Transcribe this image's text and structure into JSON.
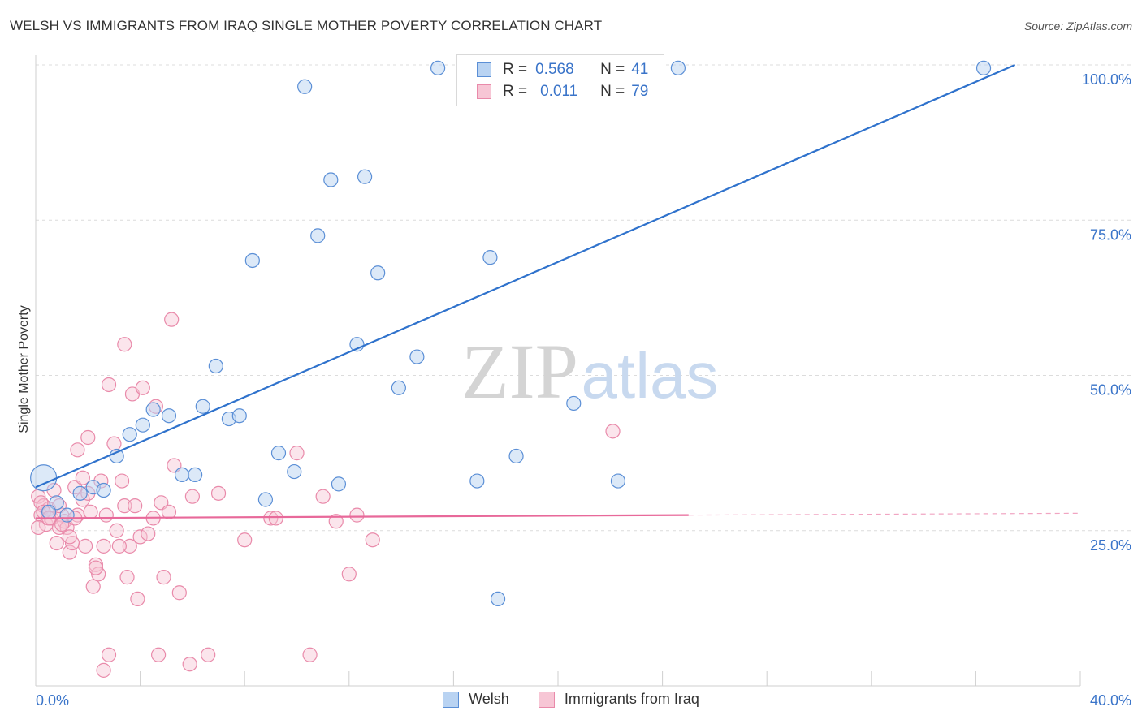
{
  "title": "WELSH VS IMMIGRANTS FROM IRAQ SINGLE MOTHER POVERTY CORRELATION CHART",
  "source": "Source: ZipAtlas.com",
  "watermark": {
    "zip": "ZIP",
    "atlas": "atlas"
  },
  "legend": {
    "r_label": "R =",
    "n_label": "N =",
    "welsh": {
      "r": "0.568",
      "n": "41"
    },
    "iraq": {
      "r": "0.011",
      "n": "79"
    }
  },
  "colors": {
    "welsh_fill": "#b9d3f2",
    "welsh_stroke": "#5b8fd6",
    "welsh_line": "#2f72cc",
    "iraq_fill": "#f7c6d5",
    "iraq_stroke": "#e98aaa",
    "iraq_line": "#e8699a",
    "axis_text": "#3a74c9",
    "grid": "#dcdcdc"
  },
  "chart_data": {
    "type": "scatter",
    "title": "WELSH VS IMMIGRANTS FROM IRAQ SINGLE MOTHER POVERTY CORRELATION CHART",
    "xlabel": "",
    "ylabel": "Single Mother Poverty",
    "xlim": [
      0,
      40
    ],
    "ylim": [
      0,
      102
    ],
    "x_tick_labels": [
      "0.0%",
      "40.0%"
    ],
    "y_tick_values": [
      25,
      50,
      75,
      100
    ],
    "y_tick_labels": [
      "25.0%",
      "50.0%",
      "75.0%",
      "100.0%"
    ],
    "grid": true,
    "legend_position": "top-center",
    "series": [
      {
        "name": "Welsh",
        "points": [
          [
            0.3,
            33.5
          ],
          [
            0.8,
            29.5
          ],
          [
            1.2,
            27.5
          ],
          [
            1.7,
            31.0
          ],
          [
            2.2,
            32.0
          ],
          [
            2.6,
            31.5
          ],
          [
            3.1,
            37.0
          ],
          [
            3.6,
            40.5
          ],
          [
            4.1,
            42.0
          ],
          [
            4.5,
            44.5
          ],
          [
            5.1,
            43.5
          ],
          [
            5.6,
            34.0
          ],
          [
            6.1,
            34.0
          ],
          [
            6.4,
            45.0
          ],
          [
            6.9,
            51.5
          ],
          [
            7.4,
            43.0
          ],
          [
            7.8,
            43.5
          ],
          [
            8.3,
            68.5
          ],
          [
            8.8,
            30.0
          ],
          [
            9.3,
            37.5
          ],
          [
            9.9,
            34.5
          ],
          [
            10.3,
            96.5
          ],
          [
            10.8,
            72.5
          ],
          [
            11.3,
            81.5
          ],
          [
            11.6,
            32.5
          ],
          [
            12.3,
            55.0
          ],
          [
            12.6,
            82.0
          ],
          [
            13.1,
            66.5
          ],
          [
            13.9,
            48.0
          ],
          [
            14.6,
            53.0
          ],
          [
            15.4,
            99.5
          ],
          [
            16.9,
            33.0
          ],
          [
            17.4,
            69.0
          ],
          [
            17.7,
            14.0
          ],
          [
            18.4,
            37.0
          ],
          [
            19.6,
            99.5
          ],
          [
            20.6,
            45.5
          ],
          [
            22.3,
            33.0
          ],
          [
            24.6,
            99.5
          ],
          [
            36.3,
            99.5
          ],
          [
            0.5,
            28.0
          ]
        ],
        "trend": {
          "x": [
            0,
            37.5
          ],
          "y": [
            32.0,
            100.0
          ]
        }
      },
      {
        "name": "Immigrants from Iraq",
        "points": [
          [
            0.1,
            30.5
          ],
          [
            0.2,
            27.5
          ],
          [
            0.3,
            29.0
          ],
          [
            0.4,
            26.0
          ],
          [
            0.5,
            28.5
          ],
          [
            0.6,
            27.0
          ],
          [
            0.7,
            31.5
          ],
          [
            0.8,
            23.0
          ],
          [
            0.9,
            25.5
          ],
          [
            1.0,
            27.5
          ],
          [
            1.1,
            26.5
          ],
          [
            1.2,
            25.5
          ],
          [
            1.3,
            21.5
          ],
          [
            1.4,
            23.0
          ],
          [
            1.5,
            32.0
          ],
          [
            1.6,
            27.5
          ],
          [
            1.6,
            38.0
          ],
          [
            1.8,
            30.0
          ],
          [
            1.8,
            33.5
          ],
          [
            1.9,
            22.5
          ],
          [
            2.0,
            40.0
          ],
          [
            2.1,
            28.0
          ],
          [
            2.2,
            16.0
          ],
          [
            2.3,
            19.5
          ],
          [
            2.4,
            18.0
          ],
          [
            2.5,
            33.0
          ],
          [
            2.6,
            22.5
          ],
          [
            2.6,
            2.5
          ],
          [
            2.7,
            27.5
          ],
          [
            2.8,
            5.0
          ],
          [
            2.8,
            48.5
          ],
          [
            3.0,
            39.0
          ],
          [
            3.1,
            25.0
          ],
          [
            3.3,
            33.0
          ],
          [
            3.4,
            29.0
          ],
          [
            3.4,
            55.0
          ],
          [
            3.5,
            17.5
          ],
          [
            3.6,
            22.5
          ],
          [
            3.7,
            47.0
          ],
          [
            3.8,
            29.0
          ],
          [
            3.9,
            14.0
          ],
          [
            4.0,
            24.0
          ],
          [
            4.1,
            48.0
          ],
          [
            4.3,
            24.5
          ],
          [
            4.5,
            27.0
          ],
          [
            4.6,
            45.0
          ],
          [
            4.7,
            5.0
          ],
          [
            4.8,
            29.5
          ],
          [
            4.9,
            17.5
          ],
          [
            5.1,
            28.0
          ],
          [
            5.2,
            59.0
          ],
          [
            5.3,
            35.5
          ],
          [
            5.5,
            15.0
          ],
          [
            5.9,
            3.5
          ],
          [
            6.0,
            30.5
          ],
          [
            6.6,
            5.0
          ],
          [
            7.0,
            31.0
          ],
          [
            8.0,
            23.5
          ],
          [
            9.0,
            27.0
          ],
          [
            10.0,
            37.5
          ],
          [
            11.0,
            30.5
          ],
          [
            11.5,
            26.5
          ],
          [
            12.0,
            18.0
          ],
          [
            12.3,
            27.5
          ],
          [
            12.9,
            23.5
          ],
          [
            0.1,
            25.5
          ],
          [
            0.2,
            29.5
          ],
          [
            0.3,
            28.0
          ],
          [
            0.5,
            27.0
          ],
          [
            0.9,
            29.0
          ],
          [
            1.0,
            26.0
          ],
          [
            1.3,
            24.0
          ],
          [
            1.5,
            27.0
          ],
          [
            2.0,
            31.0
          ],
          [
            2.3,
            19.0
          ],
          [
            3.2,
            22.5
          ],
          [
            10.5,
            5.0
          ],
          [
            22.1,
            41.0
          ],
          [
            9.2,
            27.0
          ]
        ],
        "trend": {
          "x": [
            0,
            25.0
          ],
          "y": [
            27.0,
            27.5
          ]
        },
        "trend_extension": {
          "x": [
            25.0,
            40.0
          ],
          "y": [
            27.5,
            27.8
          ]
        }
      }
    ]
  }
}
